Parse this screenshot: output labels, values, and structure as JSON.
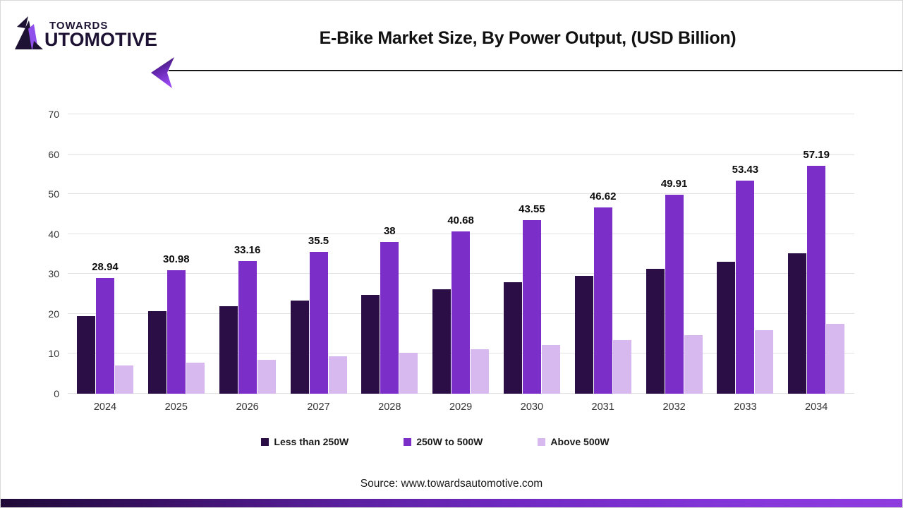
{
  "header": {
    "logo_line1": "TOWARDS",
    "logo_line2": "UTOMOTIVE",
    "title": "E-Bike Market Size, By Power Output, (USD Billion)"
  },
  "chart_data": {
    "type": "bar",
    "title": "E-Bike Market Size, By Power Output, (USD Billion)",
    "categories": [
      "2024",
      "2025",
      "2026",
      "2027",
      "2028",
      "2029",
      "2030",
      "2031",
      "2032",
      "2033",
      "2034"
    ],
    "series": [
      {
        "name": "Less than 250W",
        "color": "#2a0e45",
        "values": [
          19.5,
          20.7,
          22.0,
          23.3,
          24.7,
          26.2,
          27.9,
          29.5,
          31.3,
          33.1,
          35.2
        ],
        "labels": null
      },
      {
        "name": "250W to 500W",
        "color": "#7b2ec8",
        "values": [
          28.94,
          30.98,
          33.16,
          35.5,
          38,
          40.68,
          43.55,
          46.62,
          49.91,
          53.43,
          57.19
        ],
        "labels": [
          "28.94",
          "30.98",
          "33.16",
          "35.5",
          "38",
          "40.68",
          "43.55",
          "46.62",
          "49.91",
          "53.43",
          "57.19"
        ]
      },
      {
        "name": "Above 500W",
        "color": "#d7b9f0",
        "values": [
          7.1,
          7.8,
          8.5,
          9.3,
          10.2,
          11.2,
          12.2,
          13.4,
          14.7,
          16.0,
          17.5
        ],
        "labels": null
      }
    ],
    "ylim": [
      0,
      70
    ],
    "yticks": [
      0,
      10,
      20,
      30,
      40,
      50,
      60,
      70
    ],
    "grid": "horizontal",
    "legend_position": "bottom",
    "gridline_color": "#e2e2e2",
    "axis_text_color": "#333333"
  },
  "footer": {
    "source": "Source: www.towardsautomotive.com"
  },
  "colors": {
    "logo_dark": "#1d1233",
    "logo_purple": "#8f4fea",
    "header_rule": "#161616",
    "bottom_gradient": [
      "#1f0a38",
      "#7229c4",
      "#8f3cdf"
    ]
  }
}
